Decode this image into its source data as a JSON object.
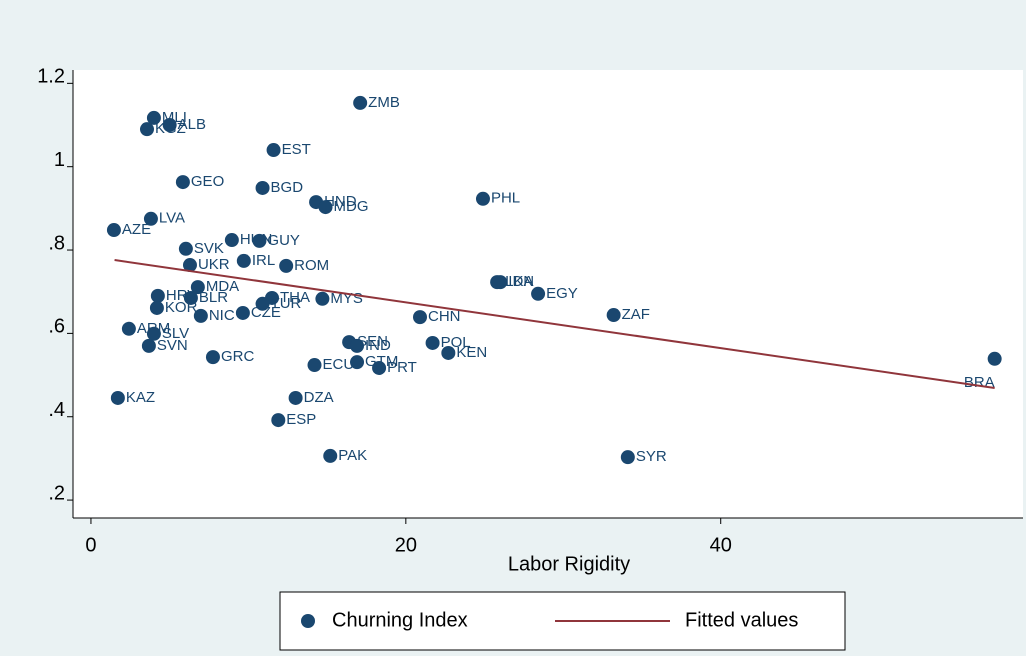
{
  "chart_data": {
    "type": "scatter",
    "x_label": "Labor Rigidity",
    "xlim": [
      -1.14,
      59.2
    ],
    "ylim": [
      0.157,
      1.232
    ],
    "xticks": [
      0,
      20,
      40
    ],
    "yticks": [
      {
        "value": 0.2,
        "label": ".2"
      },
      {
        "value": 0.4,
        "label": ".4"
      },
      {
        "value": 0.6,
        "label": ".6"
      },
      {
        "value": 0.8,
        "label": ".8"
      },
      1,
      1.2
    ],
    "series": [
      {
        "name": "Churning Index",
        "type": "scatter",
        "color": "#1a476f",
        "labels": [
          "MLI",
          "ALB",
          "KGZ",
          "ZMB",
          "EST",
          "GEO",
          "BGD",
          "HND",
          "MDG",
          "PHL",
          "LVA",
          "AZE",
          "SVK",
          "HUN",
          "GUY",
          "IRL",
          "UKR",
          "ROM",
          "IDN",
          "LKA",
          "EGY",
          "ZAF",
          "MDA",
          "BLR",
          "HRV",
          "MYS",
          "THA",
          "TUR",
          "KOR",
          "NIC",
          "CZE",
          "CHN",
          "ARM",
          "SLV",
          "SEN",
          "IND",
          "POL",
          "KEN",
          "SVN",
          "GRC",
          "ECU",
          "GTM",
          "PRT",
          "BRA",
          "KAZ",
          "DZA",
          "ESP",
          "PAK",
          "SYR"
        ],
        "x": [
          4.0,
          5.0,
          3.56,
          17.1,
          11.6,
          5.84,
          10.9,
          14.3,
          14.9,
          24.9,
          3.81,
          1.46,
          6.03,
          8.95,
          10.7,
          9.71,
          6.29,
          12.4,
          26.0,
          25.8,
          28.4,
          33.2,
          6.79,
          6.35,
          4.25,
          14.7,
          11.5,
          10.9,
          4.19,
          6.98,
          9.65,
          20.9,
          2.41,
          4.0,
          16.4,
          16.9,
          21.7,
          22.7,
          3.68,
          7.75,
          14.2,
          16.9,
          18.3,
          57.4,
          1.71,
          13.0,
          11.9,
          15.2,
          34.1
        ],
        "values": [
          1.117,
          1.1,
          1.09,
          1.153,
          1.04,
          0.963,
          0.949,
          0.915,
          0.903,
          0.923,
          0.875,
          0.848,
          0.803,
          0.824,
          0.822,
          0.774,
          0.764,
          0.762,
          0.723,
          0.723,
          0.695,
          0.644,
          0.711,
          0.685,
          0.69,
          0.683,
          0.685,
          0.671,
          0.661,
          0.642,
          0.649,
          0.639,
          0.611,
          0.599,
          0.579,
          0.57,
          0.577,
          0.553,
          0.57,
          0.543,
          0.524,
          0.531,
          0.517,
          0.539,
          0.445,
          0.445,
          0.392,
          0.306,
          0.303
        ]
      },
      {
        "name": "Fitted values",
        "type": "line",
        "color": "#90353b",
        "x": [
          1.5,
          57.4
        ],
        "values": [
          0.776,
          0.469
        ]
      }
    ]
  }
}
